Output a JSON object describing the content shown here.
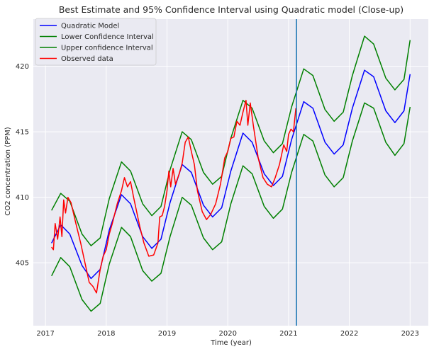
{
  "chart_data": {
    "type": "line",
    "title": "Best Estimate and 95% Confidence Interval using Quadratic model (Close-up)",
    "xlabel": "Time (year)",
    "ylabel": "CO2 concentration (PPM)",
    "xlim": [
      2016.8,
      2023.3
    ],
    "ylim": [
      400.2,
      423.6
    ],
    "x_ticks": [
      2017,
      2018,
      2019,
      2020,
      2021,
      2022,
      2023
    ],
    "y_ticks": [
      405,
      410,
      415,
      420
    ],
    "grid": true,
    "legend_position": "top-left",
    "vline": {
      "x": 2021.13,
      "color": "#1f77b4"
    },
    "series": [
      {
        "name": "Quadratic Model",
        "color": "#0000ff",
        "x": [
          2017.1,
          2017.25,
          2017.4,
          2017.6,
          2017.75,
          2017.9,
          2018.05,
          2018.25,
          2018.4,
          2018.6,
          2018.75,
          2018.9,
          2019.05,
          2019.25,
          2019.4,
          2019.6,
          2019.75,
          2019.9,
          2020.05,
          2020.25,
          2020.4,
          2020.6,
          2020.75,
          2020.9,
          2021.05,
          2021.25,
          2021.4,
          2021.6,
          2021.75,
          2021.9,
          2022.05,
          2022.25,
          2022.4,
          2022.6,
          2022.75,
          2022.9,
          2023.0
        ],
        "y": [
          406.5,
          407.9,
          407.2,
          404.8,
          403.8,
          404.5,
          407.5,
          410.2,
          409.5,
          407.0,
          406.1,
          406.8,
          409.6,
          412.5,
          411.9,
          409.4,
          408.5,
          409.2,
          412.0,
          414.9,
          414.2,
          411.8,
          410.9,
          411.6,
          414.4,
          417.3,
          416.8,
          414.2,
          413.3,
          414.0,
          416.8,
          419.7,
          419.2,
          416.6,
          415.7,
          416.6,
          419.4
        ]
      },
      {
        "name": "Lower Confidence Interval",
        "color": "#008000",
        "x": [
          2017.1,
          2017.25,
          2017.4,
          2017.6,
          2017.75,
          2017.9,
          2018.05,
          2018.25,
          2018.4,
          2018.6,
          2018.75,
          2018.9,
          2019.05,
          2019.25,
          2019.4,
          2019.6,
          2019.75,
          2019.9,
          2020.05,
          2020.25,
          2020.4,
          2020.6,
          2020.75,
          2020.9,
          2021.05,
          2021.25,
          2021.4,
          2021.6,
          2021.75,
          2021.9,
          2022.05,
          2022.25,
          2022.4,
          2022.6,
          2022.75,
          2022.9,
          2023.0
        ],
        "y": [
          404.0,
          405.4,
          404.7,
          402.2,
          401.3,
          401.9,
          404.9,
          407.7,
          407.0,
          404.4,
          403.6,
          404.2,
          407.0,
          410.0,
          409.4,
          406.9,
          406.0,
          406.6,
          409.5,
          412.4,
          411.8,
          409.3,
          408.4,
          409.1,
          411.9,
          414.8,
          414.3,
          411.7,
          410.8,
          411.5,
          414.3,
          417.2,
          416.8,
          414.2,
          413.2,
          414.1,
          416.9
        ]
      },
      {
        "name": "Upper confidence Interval",
        "color": "#008000",
        "x": [
          2017.1,
          2017.25,
          2017.4,
          2017.6,
          2017.75,
          2017.9,
          2018.05,
          2018.25,
          2018.4,
          2018.6,
          2018.75,
          2018.9,
          2019.05,
          2019.25,
          2019.4,
          2019.6,
          2019.75,
          2019.9,
          2020.05,
          2020.25,
          2020.4,
          2020.6,
          2020.75,
          2020.9,
          2021.05,
          2021.25,
          2021.4,
          2021.6,
          2021.75,
          2021.9,
          2022.05,
          2022.25,
          2022.4,
          2022.6,
          2022.75,
          2022.9,
          2023.0
        ],
        "y": [
          409.0,
          410.3,
          409.7,
          407.2,
          406.3,
          406.9,
          409.9,
          412.7,
          412.0,
          409.5,
          408.6,
          409.3,
          412.1,
          415.0,
          414.4,
          411.9,
          411.0,
          411.6,
          414.5,
          417.4,
          416.8,
          414.3,
          413.4,
          414.1,
          416.9,
          419.8,
          419.3,
          416.7,
          415.8,
          416.5,
          419.3,
          422.3,
          421.7,
          419.1,
          418.2,
          419.0,
          422.0
        ]
      },
      {
        "name": "Observed data",
        "color": "#ff0000",
        "x": [
          2017.1,
          2017.13,
          2017.16,
          2017.2,
          2017.24,
          2017.27,
          2017.3,
          2017.33,
          2017.37,
          2017.42,
          2017.5,
          2017.58,
          2017.65,
          2017.72,
          2017.78,
          2017.84,
          2017.9,
          2017.95,
          2018.0,
          2018.05,
          2018.1,
          2018.18,
          2018.25,
          2018.3,
          2018.35,
          2018.4,
          2018.45,
          2018.55,
          2018.62,
          2018.7,
          2018.78,
          2018.85,
          2018.88,
          2018.92,
          2018.96,
          2019.0,
          2019.03,
          2019.06,
          2019.1,
          2019.14,
          2019.2,
          2019.25,
          2019.3,
          2019.35,
          2019.4,
          2019.45,
          2019.5,
          2019.58,
          2019.65,
          2019.72,
          2019.8,
          2019.88,
          2019.95,
          2020.0,
          2020.05,
          2020.1,
          2020.15,
          2020.2,
          2020.25,
          2020.3,
          2020.33,
          2020.37,
          2020.42,
          2020.5,
          2020.58,
          2020.65,
          2020.72,
          2020.78,
          2020.85,
          2020.92,
          2020.97,
          2021.0,
          2021.04,
          2021.08,
          2021.12
        ],
        "y": [
          406.2,
          406.0,
          408.0,
          406.8,
          408.5,
          407.0,
          409.8,
          408.8,
          410.0,
          409.6,
          408.0,
          406.5,
          405.0,
          403.5,
          403.2,
          402.7,
          404.5,
          405.5,
          406.0,
          407.2,
          408.0,
          409.5,
          410.5,
          411.5,
          410.8,
          411.2,
          410.0,
          407.8,
          406.5,
          405.5,
          405.6,
          406.5,
          408.5,
          408.6,
          409.3,
          410.5,
          412.0,
          410.8,
          412.2,
          411.0,
          411.8,
          412.6,
          414.2,
          414.6,
          413.5,
          412.5,
          410.5,
          408.9,
          408.3,
          408.7,
          409.5,
          411.0,
          413.0,
          413.5,
          414.5,
          414.6,
          415.8,
          415.5,
          416.5,
          417.4,
          415.5,
          417.2,
          415.5,
          413.0,
          411.5,
          411.0,
          410.8,
          411.5,
          412.5,
          414.0,
          413.5,
          414.8,
          415.2,
          415.0,
          416.8
        ]
      }
    ]
  }
}
